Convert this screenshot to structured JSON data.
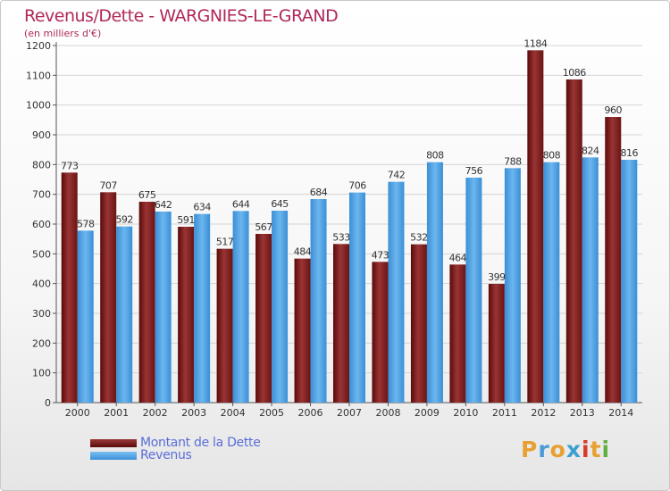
{
  "header": {
    "title": "Revenus/Dette - WARGNIES-LE-GRAND",
    "subtitle": "(en milliers d'€)"
  },
  "legend": {
    "items": [
      {
        "label": "Montant de la Dette",
        "color": "#7a1a1a"
      },
      {
        "label": "Revenus",
        "color": "#4aa0e0"
      }
    ]
  },
  "logo": {
    "text": "Proxiti",
    "letters": [
      "P",
      "r",
      "o",
      "x",
      "i",
      "t",
      "i"
    ],
    "colors": [
      "#e8a030",
      "#4a9ad8",
      "#e8a030",
      "#3aa0d0",
      "#d83a2a",
      "#e8a030",
      "#60b040"
    ]
  },
  "chart_data": {
    "type": "bar",
    "categories": [
      "2000",
      "2001",
      "2002",
      "2003",
      "2004",
      "2005",
      "2006",
      "2007",
      "2008",
      "2009",
      "2010",
      "2011",
      "2012",
      "2013",
      "2014"
    ],
    "series": [
      {
        "name": "Montant de la Dette",
        "color": "#7a1a1a",
        "values": [
          773,
          707,
          675,
          591,
          517,
          567,
          484,
          533,
          473,
          532,
          464,
          399,
          1184,
          1086,
          960
        ]
      },
      {
        "name": "Revenus",
        "color": "#4aa0e0",
        "values": [
          578,
          592,
          642,
          634,
          644,
          645,
          684,
          706,
          742,
          808,
          756,
          788,
          808,
          824,
          816
        ]
      }
    ],
    "data_labels": [
      [
        "773",
        "707",
        "675",
        "591",
        "517",
        "567",
        "484",
        "533",
        "473",
        "532",
        "464",
        "399",
        "1184",
        "1086",
        "960"
      ],
      [
        "578",
        "592",
        "642",
        "634",
        "644",
        "645",
        "684",
        "706",
        "742",
        "808",
        "756",
        "788",
        "808",
        "824",
        "816"
      ]
    ],
    "yticks": [
      "0",
      "100",
      "200",
      "300",
      "400",
      "500",
      "600",
      "700",
      "800",
      "900",
      "1000",
      "1100",
      "1200"
    ],
    "ylim": [
      0,
      1200
    ],
    "grid": true,
    "legend_position": "bottom-left"
  }
}
